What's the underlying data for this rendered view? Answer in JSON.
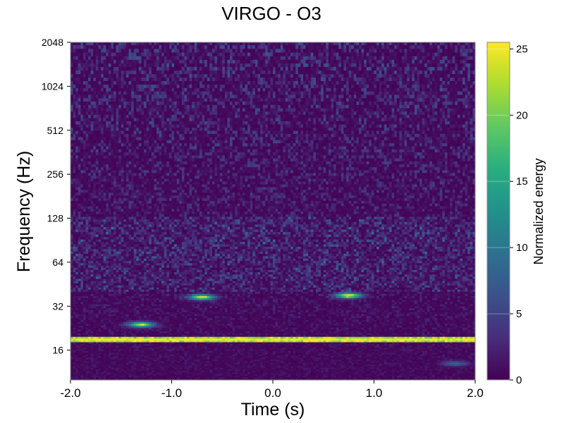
{
  "chart_data": {
    "type": "heatmap",
    "title": "VIRGO - O3",
    "xlabel": "Time (s)",
    "ylabel": "Frequency (Hz)",
    "colorbar_label": "Normalized energy",
    "xlim": [
      -2.0,
      2.0
    ],
    "ylim": [
      10,
      2048
    ],
    "yscale": "log2",
    "x_ticks": [
      "-2.0",
      "-1.0",
      "0.0",
      "1.0",
      "2.0"
    ],
    "x_tick_values": [
      -2.0,
      -1.0,
      0.0,
      1.0,
      2.0
    ],
    "y_ticks": [
      "16",
      "32",
      "64",
      "128",
      "256",
      "512",
      "1024",
      "2048"
    ],
    "y_tick_values": [
      16,
      32,
      64,
      128,
      256,
      512,
      1024,
      2048
    ],
    "colorbar_range": [
      0,
      25.5
    ],
    "colorbar_ticks": [
      "0",
      "5",
      "10",
      "15",
      "20",
      "25"
    ],
    "colorbar_tick_values": [
      0,
      5,
      10,
      15,
      20,
      25
    ],
    "colormap": "viridis",
    "features": [
      {
        "t_start": -2.0,
        "t_end": 2.0,
        "freq": 19,
        "energy": 25.5,
        "description": "saturated horizontal band"
      },
      {
        "t": -1.3,
        "freq": 24,
        "energy": 22
      },
      {
        "t": -0.7,
        "freq": 37,
        "energy": 23
      },
      {
        "t": 0.75,
        "freq": 38,
        "energy": 24
      },
      {
        "t": 1.8,
        "freq": 13,
        "energy": 8
      }
    ]
  }
}
